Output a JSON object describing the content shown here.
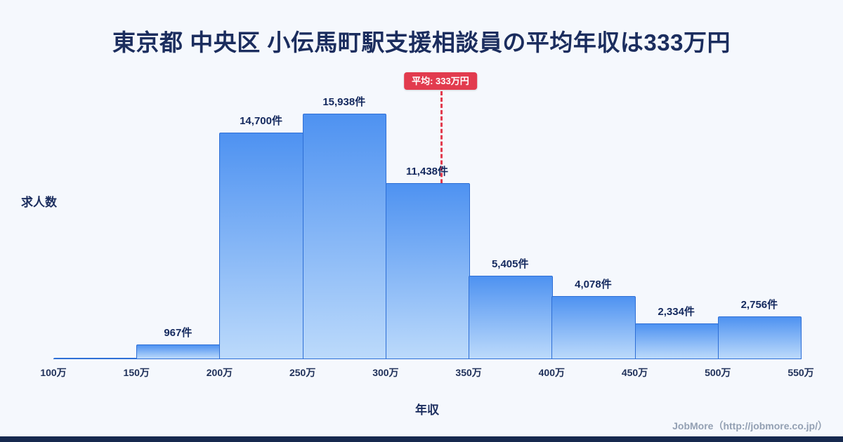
{
  "page": {
    "title": "東京都 中央区 小伝馬町駅支援相談員の平均年収は333万円",
    "footer_credit": "JobMore（http://jobmore.co.jp/）"
  },
  "chart_data": {
    "type": "bar",
    "title": "東京都 中央区 小伝馬町駅支援相談員の平均年収は333万円",
    "xlabel": "年収",
    "ylabel": "求人数",
    "x_ticks": [
      "100万",
      "150万",
      "200万",
      "250万",
      "300万",
      "350万",
      "400万",
      "450万",
      "500万",
      "550万"
    ],
    "x_range": [
      100,
      550
    ],
    "ylim": [
      0,
      16500
    ],
    "grid": false,
    "legend": false,
    "bins": [
      {
        "range": "100万-150万",
        "value": 0,
        "label": ""
      },
      {
        "range": "150万-200万",
        "value": 967,
        "label": "967件"
      },
      {
        "range": "200万-250万",
        "value": 14700,
        "label": "14,700件"
      },
      {
        "range": "250万-300万",
        "value": 15938,
        "label": "15,938件"
      },
      {
        "range": "300万-350万",
        "value": 11438,
        "label": "11,438件"
      },
      {
        "range": "350万-400万",
        "value": 5405,
        "label": "5,405件"
      },
      {
        "range": "400万-450万",
        "value": 4078,
        "label": "4,078件"
      },
      {
        "range": "450万-500万",
        "value": 2334,
        "label": "2,334件"
      },
      {
        "range": "500万-550万",
        "value": 2756,
        "label": "2,756件"
      }
    ],
    "average_line": {
      "x_value": 333,
      "label": "平均: 333万円",
      "color": "#e23b4e"
    },
    "colors": {
      "background": "#f5f8fd",
      "bar_fill_top": "#4e92f1",
      "bar_fill_bottom": "#bcdafb",
      "bar_border": "#2e6fd6",
      "title_text": "#1b2d5e",
      "credit_text": "#93a0b3",
      "bottom_stripe": "#16294f"
    }
  }
}
